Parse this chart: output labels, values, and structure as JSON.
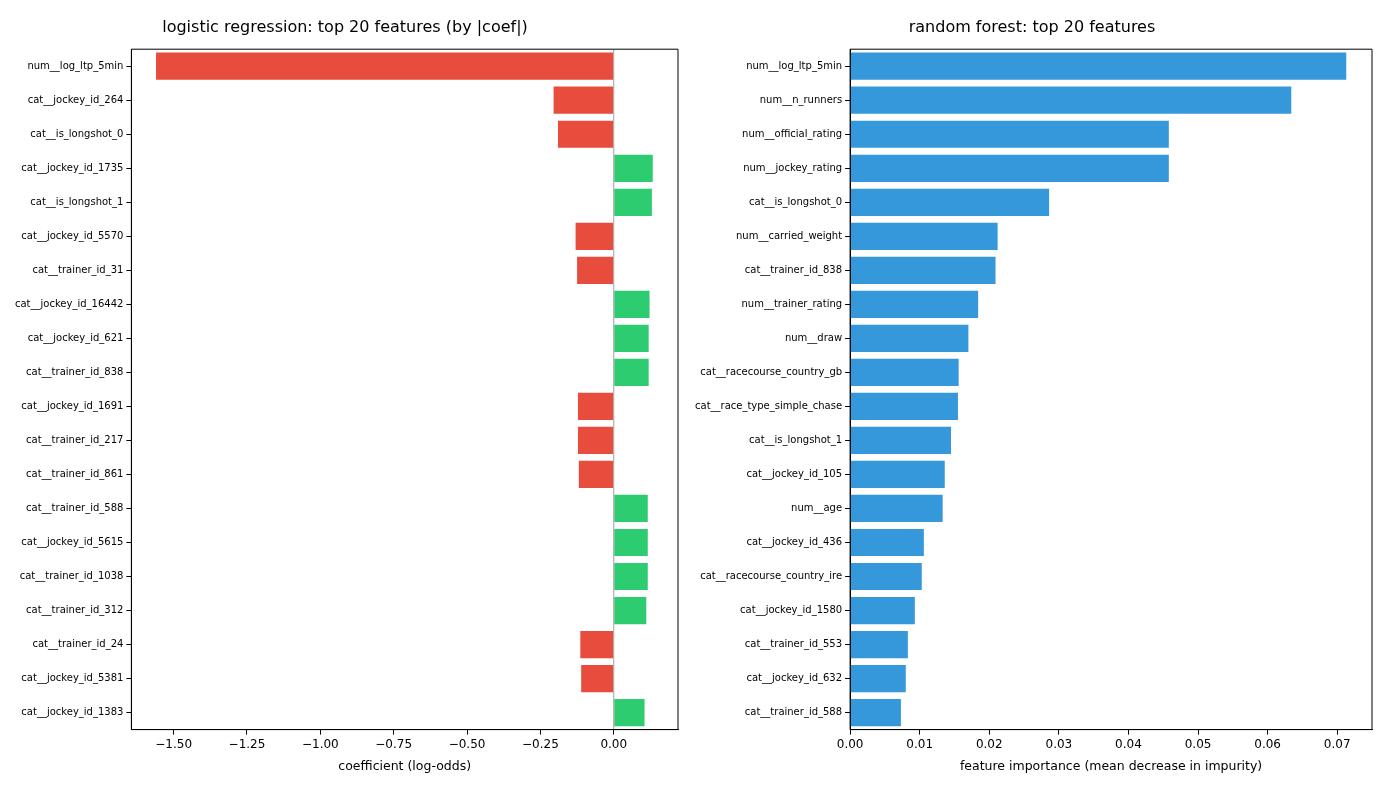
{
  "chart_data": [
    {
      "type": "bar",
      "orientation": "horizontal",
      "title": "logistic regression: top 20 features (by |coef|)",
      "xlabel": "coefficient (log-odds)",
      "categories": [
        "num__log_ltp_5min",
        "cat__jockey_id_264",
        "cat__is_longshot_0",
        "cat__jockey_id_1735",
        "cat__is_longshot_1",
        "cat__jockey_id_5570",
        "cat__trainer_id_31",
        "cat__jockey_id_16442",
        "cat__jockey_id_621",
        "cat__trainer_id_838",
        "cat__jockey_id_1691",
        "cat__trainer_id_217",
        "cat__trainer_id_861",
        "cat__trainer_id_588",
        "cat__jockey_id_5615",
        "cat__trainer_id_1038",
        "cat__trainer_id_312",
        "cat__trainer_id_24",
        "cat__jockey_id_5381",
        "cat__jockey_id_1383"
      ],
      "values": [
        -1.56,
        -0.205,
        -0.19,
        0.133,
        0.13,
        -0.13,
        -0.125,
        0.122,
        0.119,
        0.119,
        -0.122,
        -0.122,
        -0.119,
        0.116,
        0.116,
        0.116,
        0.111,
        -0.114,
        -0.111,
        0.105
      ],
      "colors": [
        "#e74c3c",
        "#e74c3c",
        "#e74c3c",
        "#2ecc71",
        "#2ecc71",
        "#e74c3c",
        "#e74c3c",
        "#2ecc71",
        "#2ecc71",
        "#2ecc71",
        "#e74c3c",
        "#e74c3c",
        "#e74c3c",
        "#2ecc71",
        "#2ecc71",
        "#2ecc71",
        "#2ecc71",
        "#e74c3c",
        "#e74c3c",
        "#2ecc71"
      ],
      "xlim": [
        -1.644,
        0.219
      ],
      "xticks": [
        {
          "value": -1.5,
          "label": "−1.50"
        },
        {
          "value": -1.25,
          "label": "−1.25"
        },
        {
          "value": -1.0,
          "label": "−1.00"
        },
        {
          "value": -0.75,
          "label": "−0.75"
        },
        {
          "value": -0.5,
          "label": "−0.50"
        },
        {
          "value": -0.25,
          "label": "−0.25"
        },
        {
          "value": 0,
          "label": "0.00"
        }
      ],
      "ref_lines": [
        {
          "axis": "x",
          "value": 0,
          "color": "#a0a0a0"
        }
      ]
    },
    {
      "type": "bar",
      "orientation": "horizontal",
      "title": "random forest: top 20 features",
      "xlabel": "feature importance (mean decrease in impurity)",
      "categories": [
        "num__log_ltp_5min",
        "num__n_runners",
        "num__official_rating",
        "num__jockey_rating",
        "cat__is_longshot_0",
        "num__carried_weight",
        "cat__trainer_id_838",
        "num__trainer_rating",
        "num__draw",
        "cat__racecourse_country_gb",
        "cat__race_type_simple_chase",
        "cat__is_longshot_1",
        "cat__jockey_id_105",
        "num__age",
        "cat__jockey_id_436",
        "cat__racecourse_country_ire",
        "cat__jockey_id_1580",
        "cat__trainer_id_553",
        "cat__jockey_id_632",
        "cat__trainer_id_588"
      ],
      "values": [
        0.0713,
        0.0634,
        0.0458,
        0.0458,
        0.0286,
        0.0212,
        0.0209,
        0.0184,
        0.017,
        0.0156,
        0.0155,
        0.0145,
        0.0136,
        0.0133,
        0.0106,
        0.0103,
        0.0093,
        0.0083,
        0.008,
        0.0073
      ],
      "color": "#3498db",
      "xlim": [
        0,
        0.075
      ],
      "xticks": [
        {
          "value": 0,
          "label": "0.00"
        },
        {
          "value": 0.01,
          "label": "0.01"
        },
        {
          "value": 0.02,
          "label": "0.02"
        },
        {
          "value": 0.03,
          "label": "0.03"
        },
        {
          "value": 0.04,
          "label": "0.04"
        },
        {
          "value": 0.05,
          "label": "0.05"
        },
        {
          "value": 0.06,
          "label": "0.06"
        },
        {
          "value": 0.07,
          "label": "0.07"
        }
      ]
    }
  ]
}
